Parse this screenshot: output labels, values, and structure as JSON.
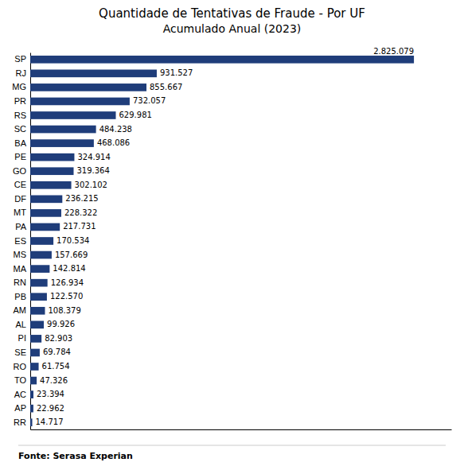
{
  "chart_data": {
    "type": "bar",
    "orientation": "horizontal",
    "title": "Quantidade de Tentativas de Fraude - Por UF",
    "subtitle": "Acumulado Anual (2023)",
    "annotations": [
      "Fonte: Serasa Experian"
    ],
    "categories": [
      "SP",
      "RJ",
      "MG",
      "PR",
      "RS",
      "SC",
      "BA",
      "PE",
      "GO",
      "CE",
      "DF",
      "MT",
      "PA",
      "ES",
      "MS",
      "MA",
      "RN",
      "PB",
      "AM",
      "AL",
      "PI",
      "SE",
      "RO",
      "TO",
      "AC",
      "AP",
      "RR"
    ],
    "values": [
      2825079,
      931527,
      855667,
      732057,
      629981,
      484238,
      468086,
      324914,
      319364,
      302102,
      236215,
      228322,
      217731,
      170534,
      157669,
      142814,
      126934,
      122570,
      108379,
      99926,
      82903,
      69784,
      61754,
      47326,
      23394,
      22962,
      14717
    ],
    "value_labels": [
      "2.825.079",
      "931.527",
      "855.667",
      "732.057",
      "629.981",
      "484.238",
      "468.086",
      "324.914",
      "319.364",
      "302.102",
      "236.215",
      "228.322",
      "217.731",
      "170.534",
      "157.669",
      "142.814",
      "126.934",
      "122.570",
      "108.379",
      "99.926",
      "82.903",
      "69.784",
      "61.754",
      "47.326",
      "23.394",
      "22.962",
      "14.717"
    ],
    "color": "#1F3D7A",
    "xlim": [
      0,
      3100000
    ],
    "data_labels": true,
    "tick_labels": "y"
  }
}
